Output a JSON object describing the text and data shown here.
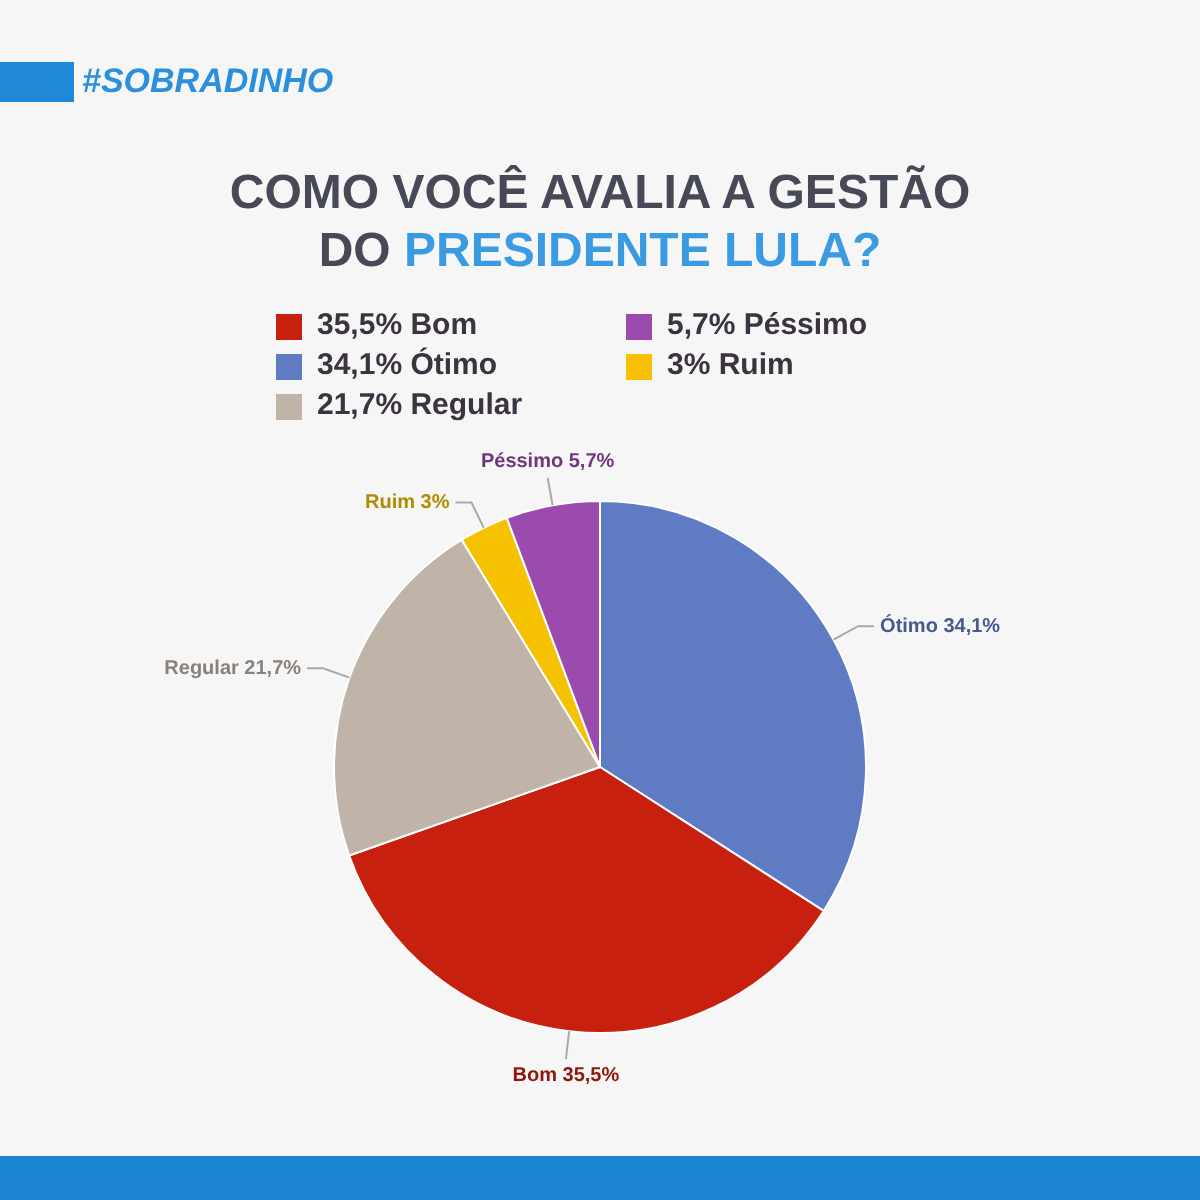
{
  "chart_data": {
    "type": "pie",
    "title": "COMO VOCÊ AVALIA A GESTÃO DO PRESIDENTE LULA?",
    "annotations": [
      "#SOBRADINHO"
    ],
    "categories": [
      "Ótimo",
      "Bom",
      "Regular",
      "Ruim",
      "Péssimo"
    ],
    "values": [
      34.1,
      35.5,
      21.7,
      3,
      5.7
    ],
    "colors": [
      "#5e7bc3",
      "#c8200f",
      "#c0b4a9",
      "#f6c100",
      "#9b4bae"
    ],
    "value_labels": [
      "34,1%",
      "35,5%",
      "21,7%",
      "3%",
      "5,7%"
    ],
    "legend": "top"
  }
}
